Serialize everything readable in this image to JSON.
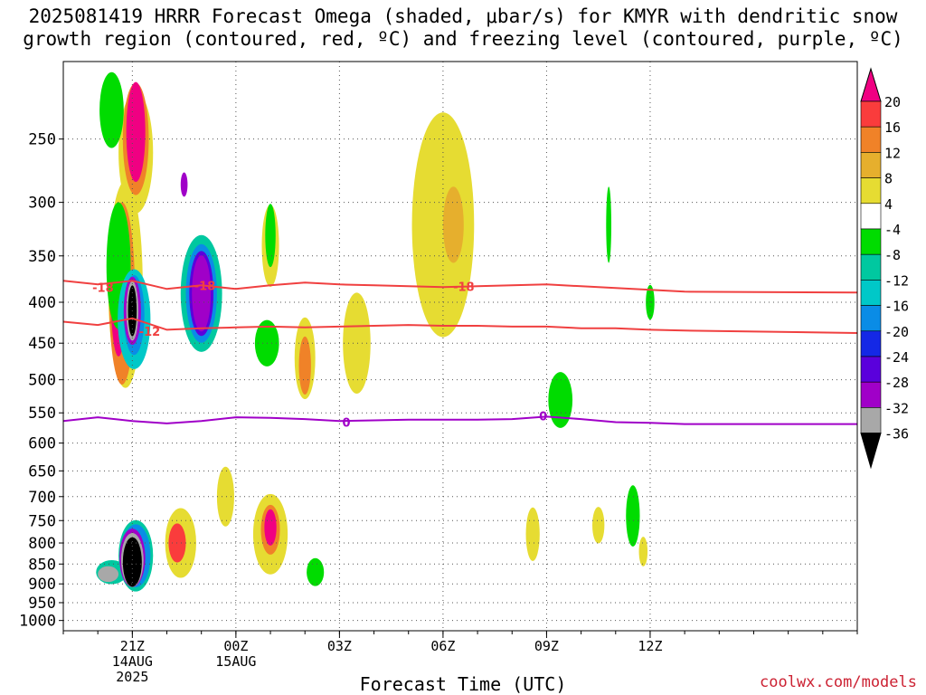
{
  "title_line1": "2025081419 HRRR Forecast Omega (shaded, μbar/s) for KMYR with dendritic snow",
  "title_line2": "growth region (contoured, red, ºC) and freezing level (contoured, purple, ºC)",
  "credit": "coolwx.com/models",
  "chart_data": {
    "type": "time-height",
    "title": "2025081419 HRRR Forecast Omega (shaded, μbar/s) for KMYR with dendritic snow growth region (contoured, red, ºC) and freezing level (contoured, purple, ºC)",
    "xlabel": "Forecast Time (UTC)",
    "ylabel": "",
    "x_unit": "hours from 14AUG2025 19Z",
    "xlim": [
      19,
      42
    ],
    "x_ticks": [
      {
        "x": 21,
        "label": "21Z",
        "sub1": "14AUG",
        "sub2": "2025"
      },
      {
        "x": 24,
        "label": "00Z",
        "sub1": "15AUG",
        "sub2": ""
      },
      {
        "x": 27,
        "label": "03Z",
        "sub1": "",
        "sub2": ""
      },
      {
        "x": 30,
        "label": "06Z",
        "sub1": "",
        "sub2": ""
      },
      {
        "x": 33,
        "label": "09Z",
        "sub1": "",
        "sub2": ""
      },
      {
        "x": 36,
        "label": "12Z",
        "sub1": "",
        "sub2": ""
      }
    ],
    "y_scale": "log",
    "y_inverted": true,
    "ylim": [
      1030,
      200
    ],
    "y_ticks": [
      250,
      300,
      350,
      400,
      450,
      500,
      550,
      600,
      650,
      700,
      750,
      800,
      850,
      900,
      950,
      1000
    ],
    "grid": true,
    "ground_color": "#a0522d",
    "colorbar": {
      "colors": [
        "#000000",
        "#a8a8a8",
        "#a000c8",
        "#5a00dc",
        "#1428e6",
        "#0a8ce6",
        "#00c8c8",
        "#00c8a0",
        "#00dc00",
        "#ffffff",
        "#e6dc32",
        "#e6af2d",
        "#f08228",
        "#fa3c3c",
        "#f00082"
      ],
      "labels": [
        "-36",
        "-32",
        "-28",
        "-24",
        "-20",
        "-16",
        "-12",
        "-8",
        "-4",
        "4",
        "8",
        "12",
        "16",
        "20"
      ]
    },
    "contour_labels": [
      {
        "text": "-18",
        "series": "dgz_top"
      },
      {
        "text": "-18",
        "series": "dgz_top"
      },
      {
        "text": "-12",
        "series": "dgz_bottom"
      },
      {
        "text": "-18",
        "series": "dgz_top"
      },
      {
        "text": "0",
        "series": "freezing_level"
      },
      {
        "text": "0",
        "series": "freezing_level"
      }
    ],
    "contour_label_positions": [
      {
        "x": 20.15,
        "p": 383
      },
      {
        "x": 23.1,
        "p": 381
      },
      {
        "x": 21.5,
        "p": 435
      },
      {
        "x": 30.6,
        "p": 382
      },
      {
        "x": 27.2,
        "p": 565
      },
      {
        "x": 32.9,
        "p": 555
      }
    ],
    "contours": [
      {
        "id": "dgz_top",
        "value": -18,
        "color": "#f04040",
        "x": [
          19,
          20,
          21,
          22,
          23,
          24,
          25,
          26,
          27,
          28,
          29,
          30,
          31,
          32,
          33,
          34,
          35,
          36,
          37,
          42
        ],
        "p": [
          376,
          380,
          376,
          385,
          381,
          385,
          381,
          378,
          380,
          381,
          382,
          383,
          382,
          381,
          380,
          382,
          384,
          386,
          388,
          389
        ]
      },
      {
        "id": "dgz_bottom",
        "value": -12,
        "color": "#f04040",
        "x": [
          19,
          20,
          21,
          22,
          23,
          24,
          25,
          26,
          27,
          28,
          29,
          30,
          31,
          32,
          33,
          34,
          35,
          36,
          37,
          42
        ],
        "p": [
          423,
          427,
          419,
          433,
          431,
          430,
          429,
          430,
          429,
          428,
          427,
          428,
          428,
          429,
          429,
          431,
          431,
          433,
          434,
          437
        ]
      },
      {
        "id": "freezing_level",
        "value": 0,
        "color": "#a000c8",
        "x": [
          19,
          20,
          21,
          22,
          23,
          24,
          25,
          26,
          27,
          28,
          29,
          30,
          31,
          32,
          33,
          34,
          35,
          36,
          37,
          42
        ],
        "p": [
          563,
          557,
          563,
          567,
          563,
          557,
          558,
          560,
          563,
          562,
          561,
          561,
          561,
          560,
          556,
          560,
          565,
          566,
          568,
          568
        ]
      }
    ],
    "omega_features": [
      {
        "x": 20.6,
        "p": 360,
        "w": 0.7,
        "h": 130,
        "v": -4
      },
      {
        "x": 20.4,
        "p": 230,
        "w": 0.7,
        "h": 50,
        "v": -4
      },
      {
        "x": 21.05,
        "p": 420,
        "w": 0.95,
        "h": 120,
        "v": -12
      },
      {
        "x": 21.05,
        "p": 415,
        "w": 0.6,
        "h": 95,
        "v": -16
      },
      {
        "x": 21.0,
        "p": 410,
        "w": 0.5,
        "h": 80,
        "v": -28
      },
      {
        "x": 21.0,
        "p": 410,
        "w": 0.35,
        "h": 70,
        "v": -32
      },
      {
        "x": 21.0,
        "p": 410,
        "w": 0.25,
        "h": 60,
        "v": -36
      },
      {
        "x": 23.0,
        "p": 390,
        "w": 1.2,
        "h": 130,
        "v": -8
      },
      {
        "x": 23.0,
        "p": 390,
        "w": 0.9,
        "h": 110,
        "v": -16
      },
      {
        "x": 23.0,
        "p": 390,
        "w": 0.7,
        "h": 95,
        "v": -24
      },
      {
        "x": 23.0,
        "p": 390,
        "w": 0.55,
        "h": 85,
        "v": -28
      },
      {
        "x": 22.5,
        "p": 285,
        "w": 0.2,
        "h": 20,
        "v": -28
      },
      {
        "x": 21.1,
        "p": 830,
        "w": 1.0,
        "h": 170,
        "v": -8
      },
      {
        "x": 21.1,
        "p": 830,
        "w": 0.85,
        "h": 150,
        "v": -16
      },
      {
        "x": 21.0,
        "p": 835,
        "w": 0.75,
        "h": 140,
        "v": -28
      },
      {
        "x": 21.0,
        "p": 840,
        "w": 0.65,
        "h": 130,
        "v": -32
      },
      {
        "x": 21.0,
        "p": 845,
        "w": 0.55,
        "h": 120,
        "v": -36
      },
      {
        "x": 20.4,
        "p": 870,
        "w": 0.9,
        "h": 60,
        "v": -8
      },
      {
        "x": 20.3,
        "p": 875,
        "w": 0.6,
        "h": 40,
        "v": -32
      },
      {
        "x": 25.0,
        "p": 330,
        "w": 0.3,
        "h": 60,
        "v": -4
      },
      {
        "x": 24.9,
        "p": 450,
        "w": 0.7,
        "h": 60,
        "v": -4
      },
      {
        "x": 26.3,
        "p": 870,
        "w": 0.5,
        "h": 70,
        "v": -4
      },
      {
        "x": 33.4,
        "p": 530,
        "w": 0.7,
        "h": 85,
        "v": -4
      },
      {
        "x": 34.8,
        "p": 320,
        "w": 0.15,
        "h": 70,
        "v": -4
      },
      {
        "x": 36.0,
        "p": 400,
        "w": 0.25,
        "h": 40,
        "v": -4
      },
      {
        "x": 35.5,
        "p": 740,
        "w": 0.4,
        "h": 130,
        "v": -4
      },
      {
        "x": 20.8,
        "p": 380,
        "w": 1.0,
        "h": 220,
        "v": 4
      },
      {
        "x": 20.7,
        "p": 390,
        "w": 0.75,
        "h": 200,
        "v": 12
      },
      {
        "x": 20.6,
        "p": 390,
        "w": 0.45,
        "h": 140,
        "v": 20
      },
      {
        "x": 21.1,
        "p": 260,
        "w": 1.0,
        "h": 90,
        "v": 4
      },
      {
        "x": 21.1,
        "p": 250,
        "w": 0.75,
        "h": 80,
        "v": 12
      },
      {
        "x": 21.1,
        "p": 245,
        "w": 0.55,
        "h": 70,
        "v": 20
      },
      {
        "x": 22.4,
        "p": 800,
        "w": 0.9,
        "h": 160,
        "v": 4
      },
      {
        "x": 22.3,
        "p": 800,
        "w": 0.5,
        "h": 90,
        "v": 16
      },
      {
        "x": 25.0,
        "p": 780,
        "w": 1.0,
        "h": 180,
        "v": 4
      },
      {
        "x": 25.0,
        "p": 770,
        "w": 0.55,
        "h": 110,
        "v": 12
      },
      {
        "x": 25.0,
        "p": 765,
        "w": 0.35,
        "h": 80,
        "v": 20
      },
      {
        "x": 25.0,
        "p": 340,
        "w": 0.5,
        "h": 80,
        "v": 4
      },
      {
        "x": 26.0,
        "p": 470,
        "w": 0.6,
        "h": 110,
        "v": 4
      },
      {
        "x": 26.0,
        "p": 480,
        "w": 0.35,
        "h": 80,
        "v": 12
      },
      {
        "x": 27.5,
        "p": 450,
        "w": 0.8,
        "h": 130,
        "v": 4
      },
      {
        "x": 30.0,
        "p": 320,
        "w": 1.8,
        "h": 200,
        "v": 4
      },
      {
        "x": 30.3,
        "p": 320,
        "w": 0.6,
        "h": 70,
        "v": 8
      },
      {
        "x": 32.6,
        "p": 780,
        "w": 0.4,
        "h": 120,
        "v": 4
      },
      {
        "x": 34.5,
        "p": 760,
        "w": 0.35,
        "h": 80,
        "v": 4
      },
      {
        "x": 23.7,
        "p": 700,
        "w": 0.5,
        "h": 120,
        "v": 4
      },
      {
        "x": 35.8,
        "p": 820,
        "w": 0.25,
        "h": 70,
        "v": 4
      }
    ]
  }
}
